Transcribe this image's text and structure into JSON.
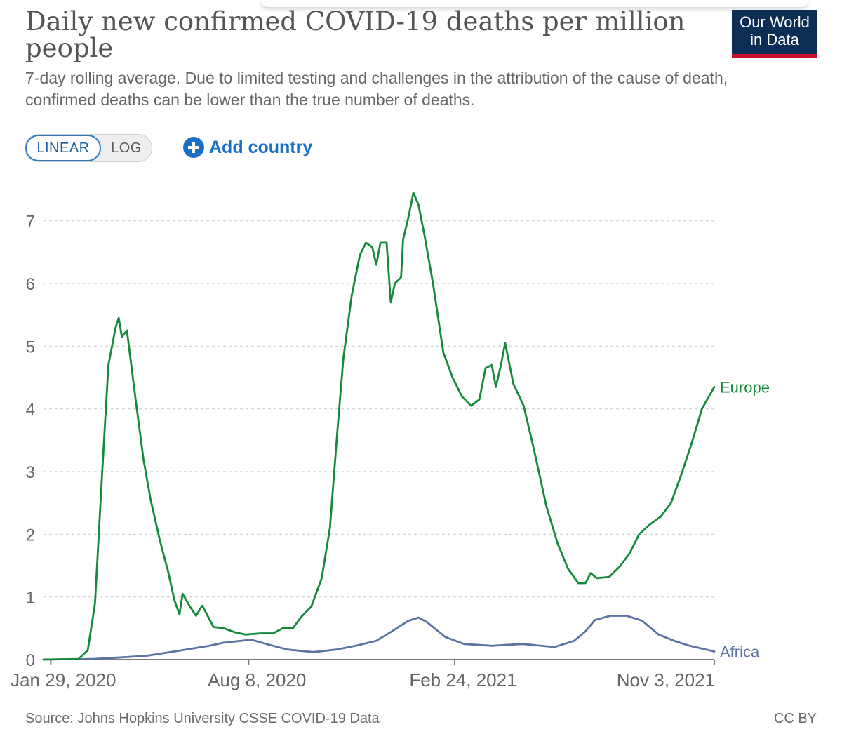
{
  "header": {
    "title": "Daily new confirmed COVID-19 deaths per million people",
    "subtitle": "7-day rolling average. Due to limited testing and challenges in the attribution of the cause of death, confirmed deaths can be lower than the true number of deaths.",
    "logo_line1": "Our World",
    "logo_line2": "in Data"
  },
  "controls": {
    "linear_label": "LINEAR",
    "log_label": "LOG",
    "add_country_label": "Add country",
    "active_scale": "linear"
  },
  "footer": {
    "source": "Source: Johns Hopkins University CSSE COVID-19 Data",
    "license": "CC BY"
  },
  "colors": {
    "europe": "#168a3c",
    "africa": "#5b73a3",
    "grid": "#cfcfcf",
    "axis": "#666666",
    "accent": "#1a6fc7"
  },
  "chart_data": {
    "type": "line",
    "title": "Daily new confirmed COVID-19 deaths per million people",
    "xlabel": "",
    "ylabel": "",
    "x_start": "2020-01-22",
    "x_end": "2021-11-03",
    "ylim": [
      0,
      7.5
    ],
    "yticks": [
      0,
      1,
      2,
      3,
      4,
      5,
      6,
      7
    ],
    "xticks": [
      {
        "date": "2020-01-29",
        "label": "Jan 29, 2020"
      },
      {
        "date": "2020-08-08",
        "label": "Aug 8, 2020"
      },
      {
        "date": "2021-02-24",
        "label": "Feb 24, 2021"
      },
      {
        "date": "2021-11-03",
        "label": "Nov 3, 2021"
      }
    ],
    "grid": true,
    "legend": "inline-right",
    "series": [
      {
        "name": "Europe",
        "points": [
          [
            "2020-01-22",
            0
          ],
          [
            "2020-02-25",
            0.01
          ],
          [
            "2020-03-05",
            0.15
          ],
          [
            "2020-03-12",
            0.9
          ],
          [
            "2020-03-19",
            3.0
          ],
          [
            "2020-03-25",
            4.7
          ],
          [
            "2020-04-01",
            5.3
          ],
          [
            "2020-04-04",
            5.45
          ],
          [
            "2020-04-07",
            5.15
          ],
          [
            "2020-04-12",
            5.25
          ],
          [
            "2020-04-20",
            4.2
          ],
          [
            "2020-04-28",
            3.2
          ],
          [
            "2020-05-05",
            2.55
          ],
          [
            "2020-05-14",
            1.9
          ],
          [
            "2020-05-22",
            1.4
          ],
          [
            "2020-05-28",
            0.95
          ],
          [
            "2020-06-02",
            0.72
          ],
          [
            "2020-06-05",
            1.05
          ],
          [
            "2020-06-12",
            0.85
          ],
          [
            "2020-06-18",
            0.7
          ],
          [
            "2020-06-24",
            0.86
          ],
          [
            "2020-06-28",
            0.74
          ],
          [
            "2020-07-05",
            0.52
          ],
          [
            "2020-07-15",
            0.5
          ],
          [
            "2020-07-25",
            0.44
          ],
          [
            "2020-08-05",
            0.4
          ],
          [
            "2020-08-20",
            0.42
          ],
          [
            "2020-09-01",
            0.42
          ],
          [
            "2020-09-10",
            0.5
          ],
          [
            "2020-09-20",
            0.5
          ],
          [
            "2020-09-28",
            0.68
          ],
          [
            "2020-10-08",
            0.85
          ],
          [
            "2020-10-18",
            1.3
          ],
          [
            "2020-10-26",
            2.1
          ],
          [
            "2020-11-02",
            3.6
          ],
          [
            "2020-11-08",
            4.8
          ],
          [
            "2020-11-16",
            5.8
          ],
          [
            "2020-11-24",
            6.45
          ],
          [
            "2020-11-30",
            6.65
          ],
          [
            "2020-12-06",
            6.58
          ],
          [
            "2020-12-10",
            6.3
          ],
          [
            "2020-12-14",
            6.65
          ],
          [
            "2020-12-20",
            6.65
          ],
          [
            "2020-12-24",
            5.7
          ],
          [
            "2020-12-28",
            6.0
          ],
          [
            "2021-01-03",
            6.1
          ],
          [
            "2021-01-05",
            6.7
          ],
          [
            "2021-01-10",
            7.05
          ],
          [
            "2021-01-15",
            7.45
          ],
          [
            "2021-01-20",
            7.25
          ],
          [
            "2021-01-26",
            6.75
          ],
          [
            "2021-02-03",
            6.0
          ],
          [
            "2021-02-13",
            4.9
          ],
          [
            "2021-02-22",
            4.5
          ],
          [
            "2021-03-03",
            4.2
          ],
          [
            "2021-03-12",
            4.05
          ],
          [
            "2021-03-20",
            4.15
          ],
          [
            "2021-03-26",
            4.65
          ],
          [
            "2021-04-01",
            4.7
          ],
          [
            "2021-04-05",
            4.35
          ],
          [
            "2021-04-10",
            4.7
          ],
          [
            "2021-04-14",
            5.05
          ],
          [
            "2021-04-22",
            4.4
          ],
          [
            "2021-05-02",
            4.05
          ],
          [
            "2021-05-12",
            3.35
          ],
          [
            "2021-05-24",
            2.45
          ],
          [
            "2021-06-04",
            1.85
          ],
          [
            "2021-06-14",
            1.45
          ],
          [
            "2021-06-24",
            1.22
          ],
          [
            "2021-07-01",
            1.22
          ],
          [
            "2021-07-06",
            1.38
          ],
          [
            "2021-07-12",
            1.3
          ],
          [
            "2021-07-24",
            1.32
          ],
          [
            "2021-08-03",
            1.48
          ],
          [
            "2021-08-13",
            1.7
          ],
          [
            "2021-08-22",
            2.0
          ],
          [
            "2021-09-01",
            2.15
          ],
          [
            "2021-09-12",
            2.28
          ],
          [
            "2021-09-22",
            2.5
          ],
          [
            "2021-10-02",
            2.95
          ],
          [
            "2021-10-12",
            3.45
          ],
          [
            "2021-10-22",
            4.0
          ],
          [
            "2021-11-03",
            4.35
          ]
        ]
      },
      {
        "name": "Africa",
        "points": [
          [
            "2020-01-22",
            0
          ],
          [
            "2020-03-10",
            0.01
          ],
          [
            "2020-04-01",
            0.03
          ],
          [
            "2020-05-01",
            0.06
          ],
          [
            "2020-06-01",
            0.14
          ],
          [
            "2020-07-01",
            0.22
          ],
          [
            "2020-07-15",
            0.27
          ],
          [
            "2020-08-01",
            0.3
          ],
          [
            "2020-08-10",
            0.32
          ],
          [
            "2020-08-25",
            0.25
          ],
          [
            "2020-09-15",
            0.16
          ],
          [
            "2020-10-10",
            0.12
          ],
          [
            "2020-11-01",
            0.16
          ],
          [
            "2020-11-20",
            0.22
          ],
          [
            "2020-12-10",
            0.3
          ],
          [
            "2020-12-25",
            0.45
          ],
          [
            "2021-01-10",
            0.62
          ],
          [
            "2021-01-20",
            0.67
          ],
          [
            "2021-01-28",
            0.6
          ],
          [
            "2021-02-15",
            0.36
          ],
          [
            "2021-03-05",
            0.25
          ],
          [
            "2021-04-01",
            0.22
          ],
          [
            "2021-05-01",
            0.25
          ],
          [
            "2021-06-01",
            0.2
          ],
          [
            "2021-06-20",
            0.3
          ],
          [
            "2021-07-01",
            0.45
          ],
          [
            "2021-07-10",
            0.63
          ],
          [
            "2021-07-25",
            0.7
          ],
          [
            "2021-08-10",
            0.7
          ],
          [
            "2021-08-25",
            0.62
          ],
          [
            "2021-09-10",
            0.4
          ],
          [
            "2021-09-25",
            0.3
          ],
          [
            "2021-10-10",
            0.22
          ],
          [
            "2021-11-03",
            0.13
          ]
        ]
      }
    ]
  }
}
